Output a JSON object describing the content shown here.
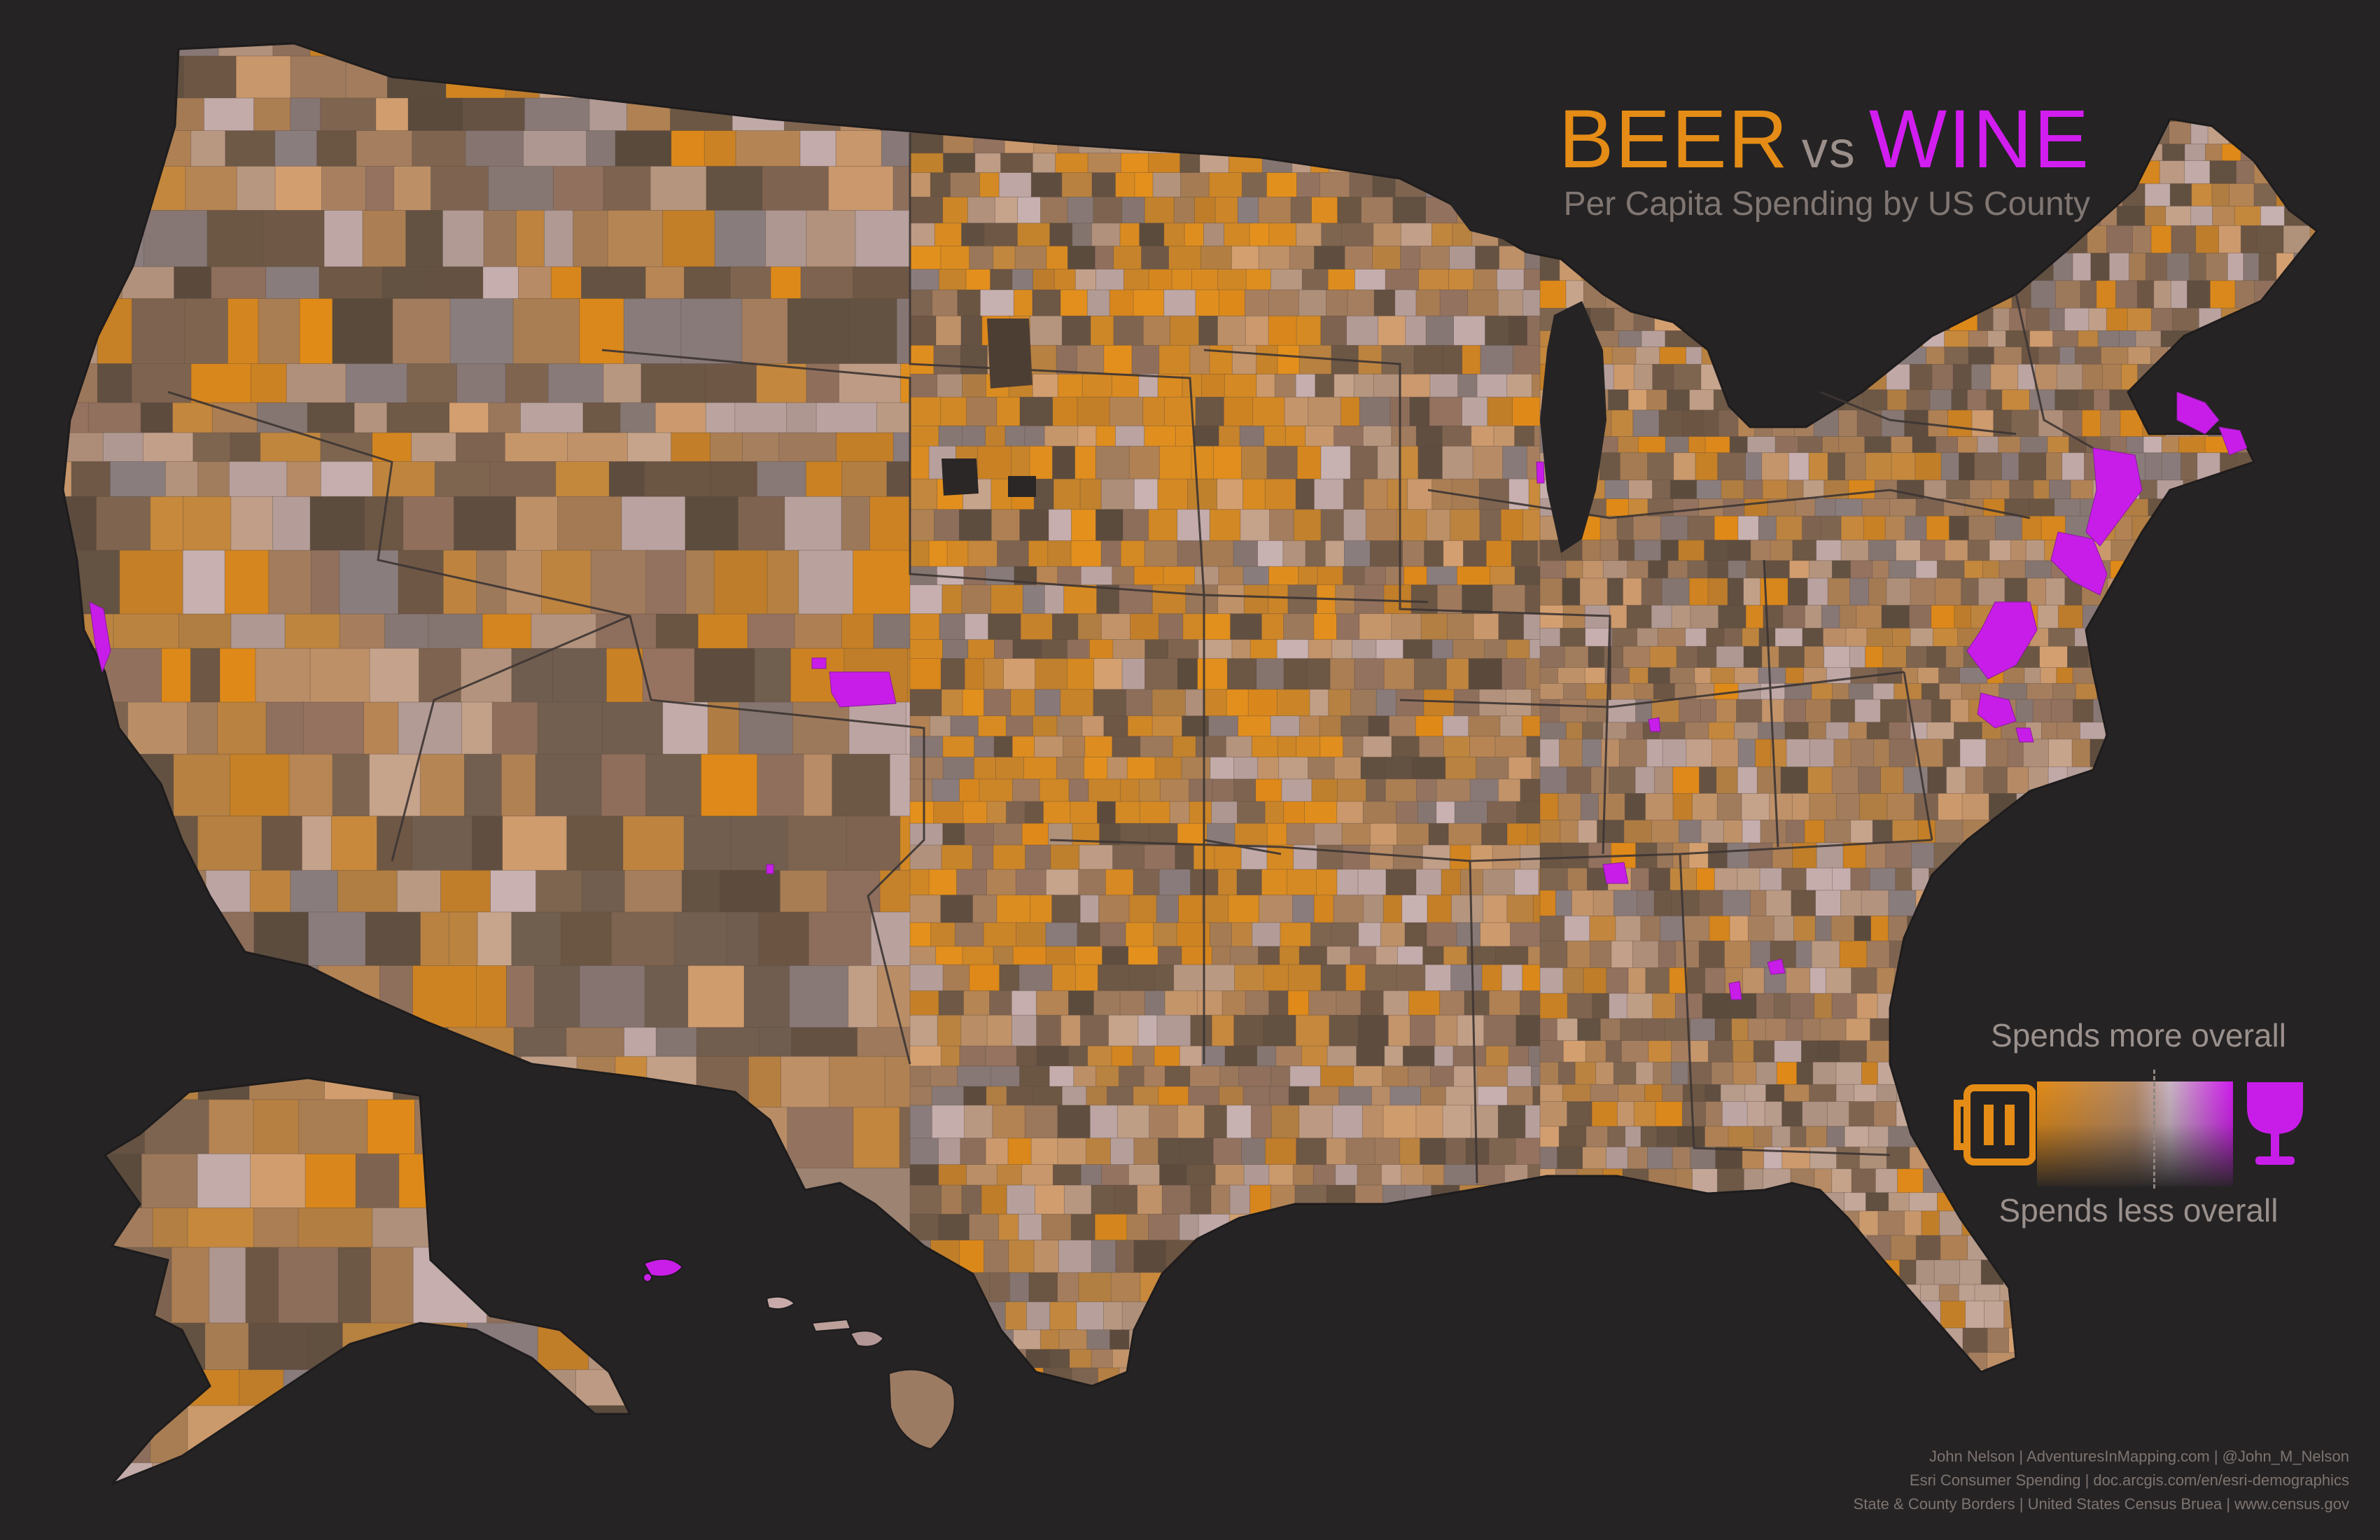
{
  "title": {
    "beer": "BEER",
    "vs": "vs",
    "wine": "WINE",
    "subtitle": "Per Capita Spending by US County"
  },
  "legend": {
    "more_label": "Spends more overall",
    "less_label": "Spends less overall",
    "left_icon": "beer-mug-icon",
    "right_icon": "wine-glass-icon"
  },
  "colors": {
    "background": "#252324",
    "beer": "#e48c16",
    "wine": "#d21df0",
    "neutral": "#9c8372",
    "state_border": "#3d3533"
  },
  "credits": [
    "John Nelson  |  AdventuresInMapping.com  |  @John_M_Nelson",
    "Esri Consumer Spending  |  doc.arcgis.com/en/esri-demographics",
    "State & County Borders  |  United States Census Bruea  |  www.census.gov"
  ],
  "map": {
    "regions": [
      "Contiguous United States",
      "Alaska",
      "Hawaii"
    ],
    "wine_hotspots": [
      "San Francisco Bay Area",
      "Denver",
      "Santa Fe",
      "Boston",
      "New York City",
      "Philadelphia",
      "Washington DC",
      "Richmond",
      "Nashville",
      "Atlanta",
      "Lexington"
    ]
  }
}
